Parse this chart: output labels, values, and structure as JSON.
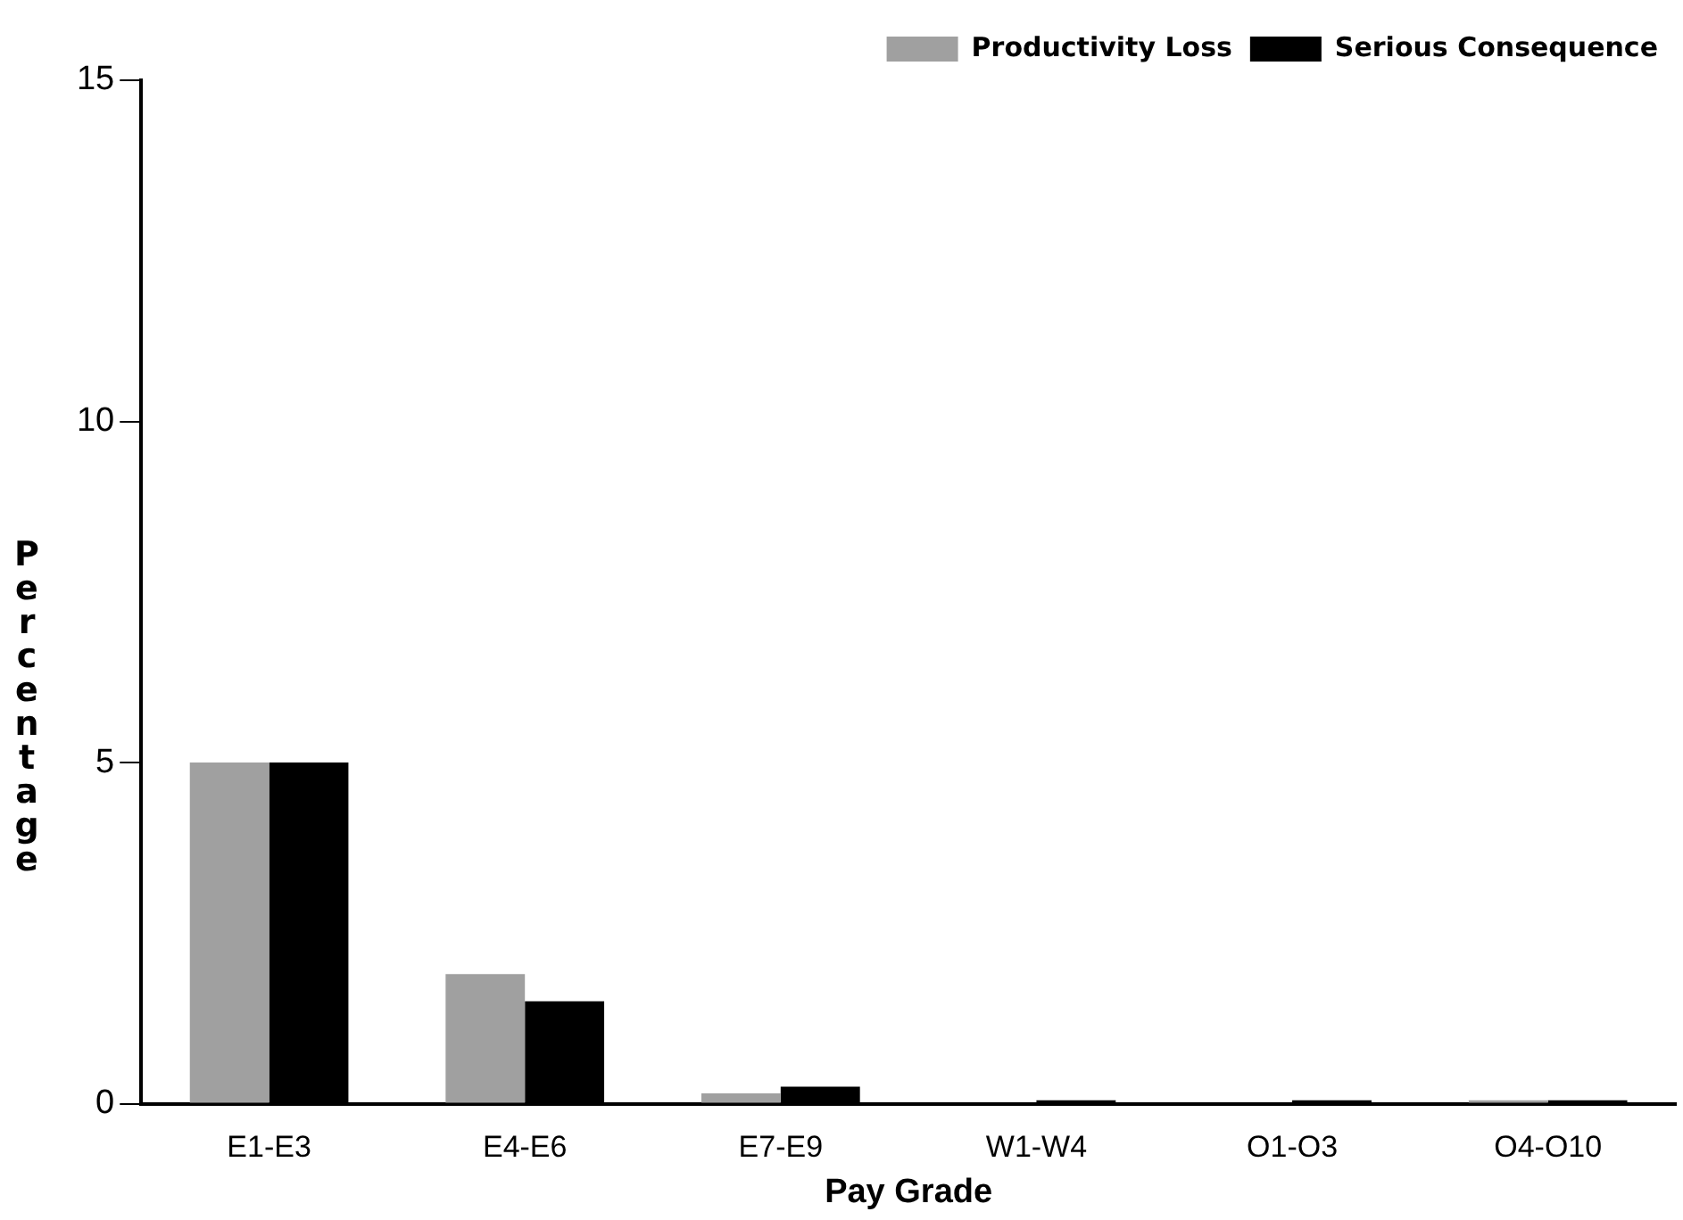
{
  "chart_data": {
    "type": "bar",
    "xlabel": "Pay Grade",
    "ylabel": "Percentage",
    "categories": [
      "E1-E3",
      "E4-E6",
      "E7-E9",
      "W1-W4",
      "O1-O3",
      "O4-O10"
    ],
    "series": [
      {
        "name": "Productivity Loss",
        "color": "#a0a0a0",
        "values": [
          5,
          1.9,
          0.15,
          0,
          0,
          0.05
        ]
      },
      {
        "name": "Serious Consequence",
        "color": "#000000",
        "values": [
          5,
          1.5,
          0.25,
          0.05,
          0.05,
          0.05
        ]
      }
    ],
    "ylim": [
      0,
      15
    ],
    "yticks": [
      0,
      5,
      10,
      15
    ],
    "grid": false,
    "legend": "top right"
  }
}
